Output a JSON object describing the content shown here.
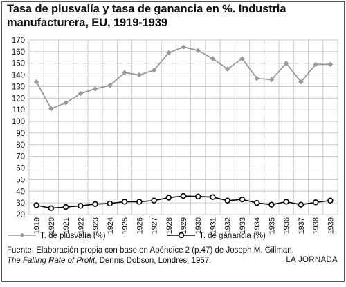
{
  "chart_data": {
    "type": "line",
    "title": "Tasa de plusvalía y tasa de ganancia en %. Industria manufacturera, EU, 1919-1939",
    "xlabel": "",
    "ylabel": "",
    "ylim": [
      20,
      170
    ],
    "yticks": [
      20,
      30,
      40,
      50,
      60,
      70,
      80,
      90,
      100,
      110,
      120,
      130,
      140,
      150,
      160,
      170
    ],
    "grid": true,
    "legend_position": "bottom-left",
    "categories": [
      "1919",
      "1920",
      "1921",
      "1922",
      "1923",
      "1924",
      "1925",
      "1926",
      "1927",
      "1928",
      "1929",
      "1930",
      "1931",
      "1932",
      "1933",
      "1934",
      "1935",
      "1936",
      "1937",
      "1938",
      "1939"
    ],
    "series": [
      {
        "name": "T. de plusvalía (%)",
        "color": "#999999",
        "marker": "diamond",
        "values": [
          134,
          111,
          116,
          124,
          128,
          131,
          142,
          140,
          144,
          159,
          164,
          161,
          154,
          145,
          154,
          137,
          136,
          150,
          134,
          149,
          149
        ]
      },
      {
        "name": "T. de ganancia (%)",
        "color": "#000000",
        "marker": "circle-open",
        "values": [
          28,
          25.5,
          26.5,
          27.5,
          29,
          29.5,
          31,
          31,
          32,
          34.5,
          36,
          35.5,
          35,
          32,
          33,
          30,
          28.5,
          31,
          28.5,
          30.5,
          32
        ]
      }
    ]
  },
  "source": {
    "line1": "Fuente: Elaboración propia con base en Apéndice 2 (p.47) de Joseph M. Gillman,",
    "line2_italic": "The Falling Rate of Profit",
    "line2_rest": ", Dennis Dobson, Londres, 1957."
  },
  "credit": "LA JORNADA",
  "colors": {
    "plusvalia": "#999999",
    "ganancia": "#000000",
    "grid": "#cccccc"
  }
}
